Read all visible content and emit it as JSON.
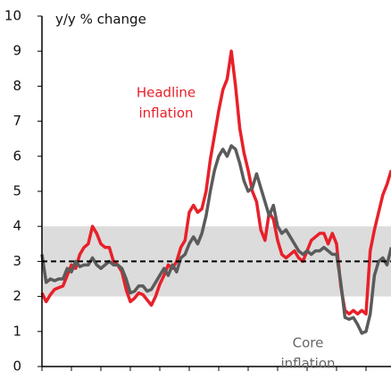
{
  "chart_data": {
    "type": "line",
    "ylabel": "y/y % change",
    "categories": [
      null,
      null,
      null,
      null,
      null,
      null,
      null,
      null,
      null,
      null,
      null,
      null,
      null,
      null,
      null,
      null,
      null,
      null,
      null,
      null,
      null,
      null,
      null,
      null,
      null,
      null,
      null,
      null,
      null,
      null,
      null,
      null,
      null,
      null,
      null,
      null,
      null,
      null,
      null,
      null,
      null,
      null,
      null,
      null,
      null,
      null,
      null,
      null,
      null,
      null,
      null,
      null,
      null,
      null,
      null,
      null,
      null,
      null,
      null,
      null,
      null,
      null,
      null,
      null,
      null,
      null,
      null,
      null,
      null,
      null,
      null,
      null,
      null,
      null,
      null,
      null,
      null,
      null,
      null,
      null,
      null,
      null,
      null,
      null
    ],
    "series": [
      {
        "name": "Headline inflation",
        "color": "#e8202a",
        "values": [
          2.1,
          1.85,
          2.05,
          2.2,
          2.25,
          2.3,
          2.6,
          2.9,
          2.8,
          3.2,
          3.4,
          3.5,
          4.0,
          3.8,
          3.5,
          3.4,
          3.4,
          3.0,
          2.9,
          2.7,
          2.2,
          1.85,
          1.95,
          2.1,
          2.05,
          1.9,
          1.75,
          2.0,
          2.35,
          2.6,
          2.9,
          2.8,
          3.0,
          3.4,
          3.6,
          4.4,
          4.6,
          4.4,
          4.5,
          5.0,
          5.9,
          6.6,
          7.3,
          7.9,
          8.2,
          9.0,
          8.0,
          6.8,
          6.1,
          5.6,
          5.0,
          4.7,
          3.9,
          3.6,
          4.4,
          4.2,
          3.6,
          3.2,
          3.1,
          3.2,
          3.3,
          3.1,
          3.0,
          3.3,
          3.6,
          3.7,
          3.8,
          3.8,
          3.5,
          3.8,
          3.5,
          2.3,
          1.6,
          1.5,
          1.6,
          1.5,
          1.6,
          1.5,
          3.3,
          3.9,
          4.4,
          4.9,
          5.2,
          5.6
        ]
      },
      {
        "name": "Core inflation",
        "color": "#5b5b5b",
        "values": [
          3.2,
          2.4,
          2.5,
          2.45,
          2.5,
          2.5,
          2.8,
          2.7,
          3.0,
          2.85,
          2.9,
          2.9,
          3.1,
          2.9,
          2.8,
          2.9,
          3.0,
          2.9,
          2.9,
          2.8,
          2.5,
          2.1,
          2.15,
          2.3,
          2.3,
          2.15,
          2.2,
          2.4,
          2.6,
          2.8,
          2.6,
          2.9,
          2.7,
          3.1,
          3.2,
          3.5,
          3.7,
          3.5,
          3.8,
          4.3,
          5.0,
          5.6,
          6.0,
          6.2,
          6.0,
          6.3,
          6.2,
          5.8,
          5.3,
          5.0,
          5.1,
          5.5,
          5.1,
          4.7,
          4.3,
          4.6,
          4.0,
          3.8,
          3.9,
          3.7,
          3.5,
          3.3,
          3.2,
          3.3,
          3.2,
          3.3,
          3.3,
          3.4,
          3.3,
          3.2,
          3.2,
          2.4,
          1.4,
          1.35,
          1.4,
          1.2,
          0.95,
          1.0,
          1.5,
          2.6,
          3.0,
          3.1,
          2.9,
          3.4
        ]
      }
    ],
    "annotations": [
      {
        "lines": [
          "Headline",
          "inflation"
        ],
        "color": "#e8202a"
      },
      {
        "lines": [
          "Core",
          "inflation"
        ],
        "color": "#666666"
      }
    ],
    "band": [
      2,
      4
    ],
    "band_color": "#dcdcdc",
    "reference_line": 3,
    "ylim": [
      0,
      10
    ],
    "yticks": [
      0,
      1,
      2,
      3,
      4,
      5,
      6,
      7,
      8,
      9,
      10
    ],
    "xtick_every": 7
  }
}
